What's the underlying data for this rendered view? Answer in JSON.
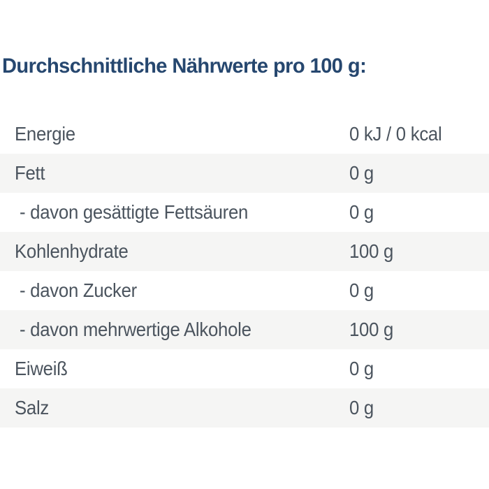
{
  "header": {
    "title": "Durchschnittliche Nährwerte pro 100 g:",
    "title_color": "#26476f"
  },
  "table": {
    "stripe_color": "#f5f5f4",
    "text_color": "#4b545e",
    "rows": [
      {
        "label": "Energie",
        "value": "0 kJ / 0 kcal"
      },
      {
        "label": "Fett",
        "value": "0 g"
      },
      {
        "label": "- davon gesättigte Fettsäuren",
        "value": "0 g"
      },
      {
        "label": "Kohlenhydrate",
        "value": "100 g"
      },
      {
        "label": "- davon Zucker",
        "value": "0 g"
      },
      {
        "label": "- davon mehrwertige Alkohole",
        "value": "100 g"
      },
      {
        "label": "Eiweiß",
        "value": "0 g"
      },
      {
        "label": "Salz",
        "value": "0 g"
      }
    ]
  }
}
